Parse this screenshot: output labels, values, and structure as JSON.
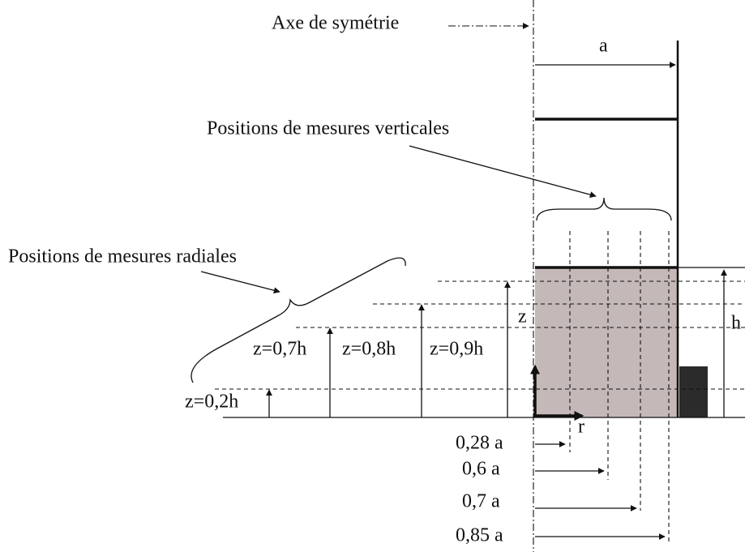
{
  "labels": {
    "axis": "Axe de symétrie",
    "a": "a",
    "vertical": "Positions de mesures verticales",
    "radial": "Positions de mesures radiales",
    "z": "z",
    "r": "r",
    "h": "h",
    "heights": [
      "z=0,2h",
      "z=0,7h",
      "z=0,8h",
      "z=0,9h"
    ],
    "radii": [
      "0,28 a",
      "0,6 a",
      "0,7 a",
      "0,85 a"
    ]
  }
}
